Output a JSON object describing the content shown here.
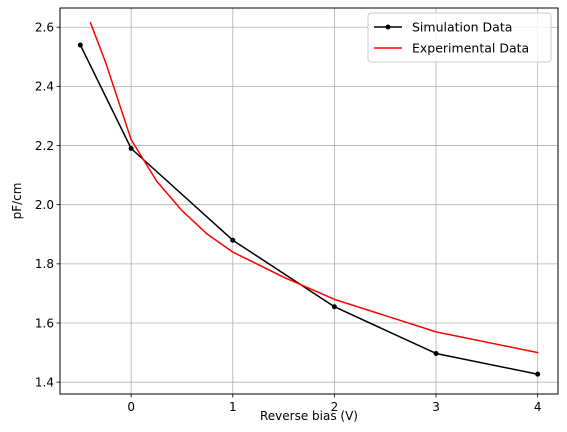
{
  "chart_data": {
    "type": "line",
    "title": "",
    "xlabel": "Reverse bias (V)",
    "ylabel": "pF/cm",
    "xlim": [
      -0.7,
      4.2
    ],
    "ylim": [
      1.36,
      2.665
    ],
    "grid": true,
    "legend_position": "top-right",
    "xticks": [
      0,
      1,
      2,
      3,
      4
    ],
    "xtick_labels": [
      "0",
      "1",
      "2",
      "3",
      "4"
    ],
    "yticks": [
      1.4,
      1.6,
      1.8,
      2.0,
      2.2,
      2.4,
      2.6
    ],
    "ytick_labels": [
      "1.4",
      "1.6",
      "1.8",
      "2.0",
      "2.2",
      "2.4",
      "2.6"
    ],
    "series": [
      {
        "name": "Simulation Data",
        "color": "#000000",
        "marker": "point",
        "x": [
          -0.5,
          0,
          1,
          2,
          3,
          4
        ],
        "y": [
          2.54,
          2.19,
          1.88,
          1.655,
          1.497,
          1.427
        ]
      },
      {
        "name": "Experimental Data",
        "color": "#ff0000",
        "marker": "none",
        "x": [
          -0.4,
          -0.25,
          0,
          0.25,
          0.5,
          0.75,
          1,
          1.5,
          2,
          3,
          4
        ],
        "y": [
          2.615,
          2.48,
          2.22,
          2.08,
          1.98,
          1.9,
          1.84,
          1.755,
          1.68,
          1.57,
          1.5
        ]
      }
    ]
  }
}
